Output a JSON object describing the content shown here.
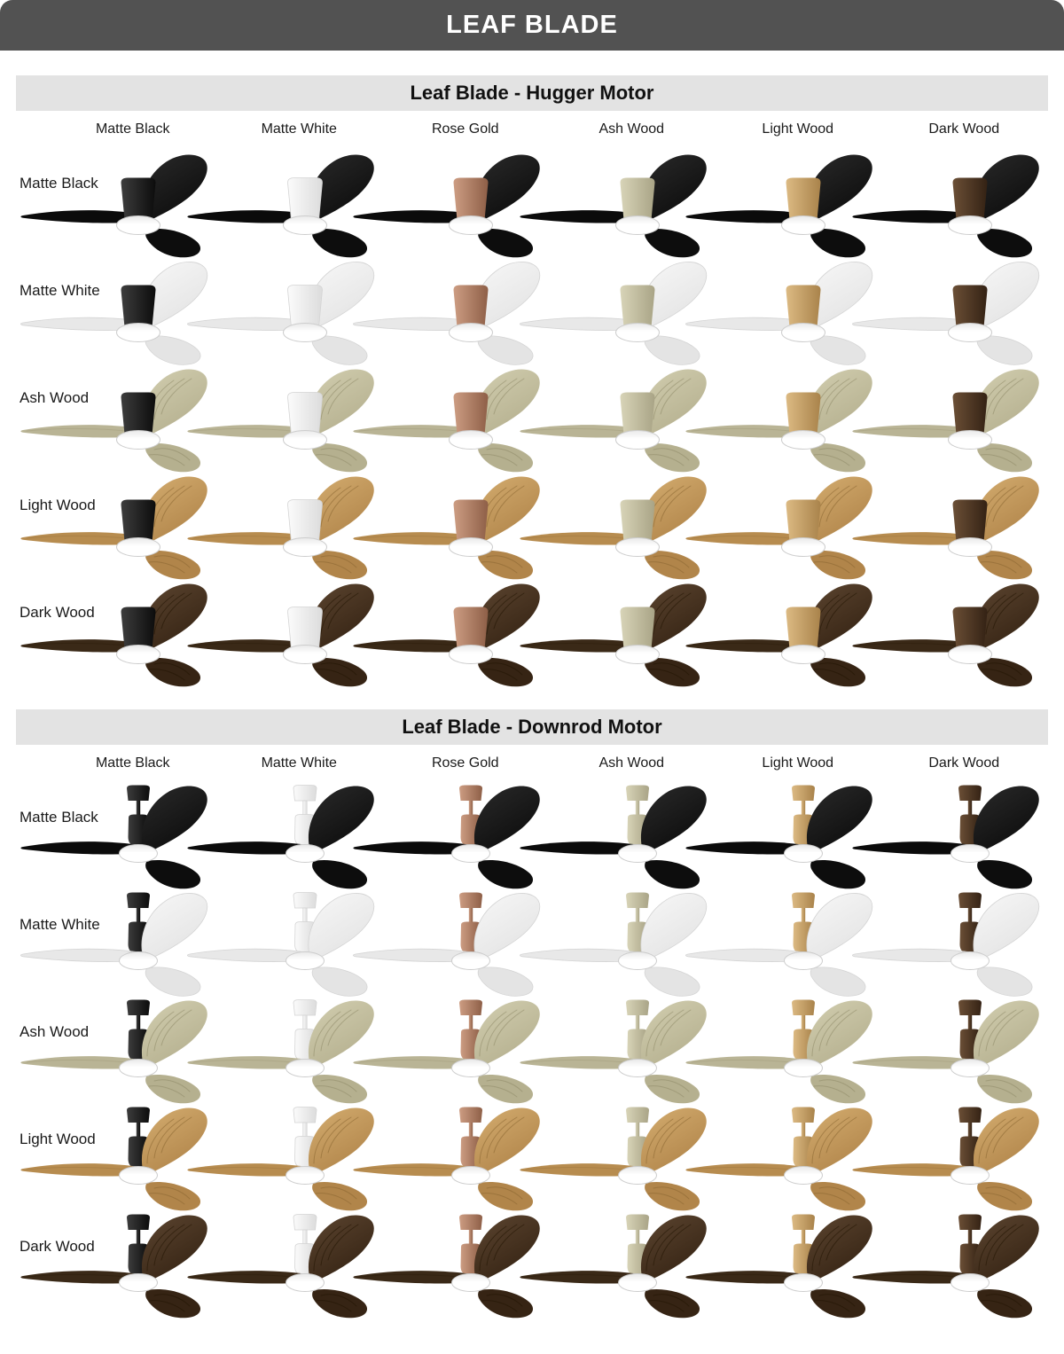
{
  "page": {
    "title": "LEAF BLADE"
  },
  "theme": {
    "page_bg": "#ffffff",
    "header_bg": "#525252",
    "header_text": "#ffffff",
    "section_bg": "#e3e3e3",
    "section_text": "#111111",
    "label_color": "#1a1a1a",
    "light_ring_fill": "#ffffff",
    "light_ring_rim": "#cdcdcd"
  },
  "finishes": [
    {
      "id": "matte-black",
      "label": "Matte Black",
      "motor": [
        "#3d3d3d",
        "#0c0c0c"
      ],
      "blade": [
        "#2a2a2a",
        "#0d0d0d"
      ],
      "blade_side": "#0b0b0b",
      "grain": null,
      "stroke": null
    },
    {
      "id": "matte-white",
      "label": "Matte White",
      "motor": [
        "#fbfbfb",
        "#dcdcdc"
      ],
      "blade": [
        "#f7f7f7",
        "#e4e4e4"
      ],
      "blade_side": "#e8e8e8",
      "grain": null,
      "stroke": "#d4d4d4"
    },
    {
      "id": "rose-gold",
      "label": "Rose Gold",
      "motor": [
        "#cd9d83",
        "#8e5f47"
      ],
      "blade": [
        "#c39a7f",
        "#9a6b52"
      ],
      "blade_side": "#a97b61",
      "grain": null,
      "stroke": null
    },
    {
      "id": "ash-wood",
      "label": "Ash Wood",
      "motor": [
        "#d8d4b8",
        "#a9a486"
      ],
      "blade": [
        "#d2ceb0",
        "#b5b08f"
      ],
      "blade_side": "#b9b495",
      "grain": "#8f8a68",
      "stroke": null
    },
    {
      "id": "light-wood",
      "label": "Light Wood",
      "motor": [
        "#dcba83",
        "#a9834b"
      ],
      "blade": [
        "#d4ad70",
        "#b1854a"
      ],
      "blade_side": "#b78c4f",
      "grain": "#8a6631",
      "stroke": null
    },
    {
      "id": "dark-wood",
      "label": "Dark Wood",
      "motor": [
        "#6b4f36",
        "#342214"
      ],
      "blade": [
        "#5c4530",
        "#362414"
      ],
      "blade_side": "#3a2917",
      "grain": "#221402",
      "stroke": null
    }
  ],
  "sections": [
    {
      "id": "hugger",
      "title": "Leaf Blade - Hugger Motor",
      "motor_type": "hugger",
      "column_finishes": [
        "matte-black",
        "matte-white",
        "rose-gold",
        "ash-wood",
        "light-wood",
        "dark-wood"
      ],
      "row_finishes": [
        "matte-black",
        "matte-white",
        "ash-wood",
        "light-wood",
        "dark-wood"
      ]
    },
    {
      "id": "downrod",
      "title": "Leaf Blade - Downrod Motor",
      "motor_type": "downrod",
      "column_finishes": [
        "matte-black",
        "matte-white",
        "rose-gold",
        "ash-wood",
        "light-wood",
        "dark-wood"
      ],
      "row_finishes": [
        "matte-black",
        "matte-white",
        "ash-wood",
        "light-wood",
        "dark-wood"
      ]
    }
  ]
}
